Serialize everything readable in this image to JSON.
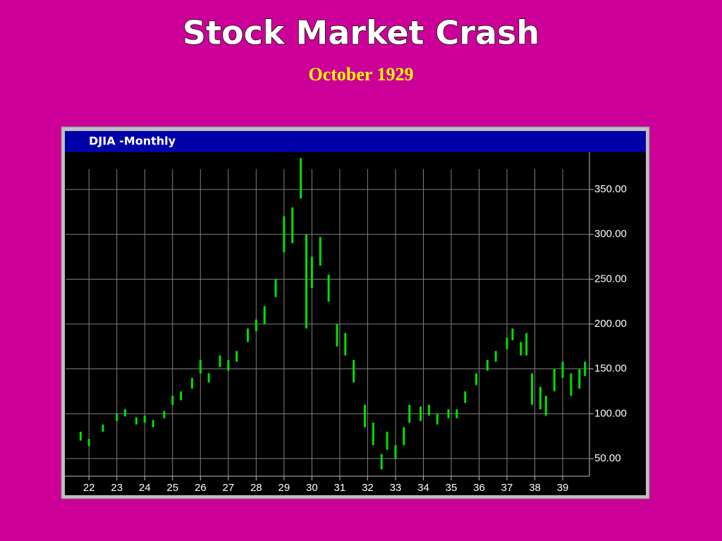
{
  "header": {
    "title": "Stock Market Crash",
    "subtitle": "October 1929"
  },
  "chart_data": {
    "type": "hilo",
    "title": "DJIA -Monthly",
    "color": "#00e000",
    "grid": true,
    "x": [
      21.7,
      22.0,
      22.5,
      23.0,
      23.3,
      23.7,
      24.0,
      24.3,
      24.7,
      25.0,
      25.3,
      25.7,
      26.0,
      26.3,
      26.7,
      27.0,
      27.3,
      27.7,
      28.0,
      28.3,
      28.7,
      29.0,
      29.3,
      29.6,
      29.8,
      30.0,
      30.3,
      30.6,
      30.9,
      31.2,
      31.5,
      31.9,
      32.2,
      32.5,
      32.7,
      33.0,
      33.3,
      33.5,
      33.9,
      34.2,
      34.5,
      34.9,
      35.2,
      35.5,
      35.9,
      36.3,
      36.6,
      37.0,
      37.2,
      37.5,
      37.7,
      37.9,
      38.2,
      38.4,
      38.7,
      39.0,
      39.3,
      39.6,
      39.8
    ],
    "high": [
      80,
      72,
      88,
      100,
      105,
      96,
      98,
      93,
      103,
      120,
      125,
      140,
      160,
      145,
      165,
      160,
      170,
      195,
      205,
      220,
      250,
      320,
      330,
      385,
      300,
      275,
      297,
      255,
      200,
      190,
      160,
      110,
      90,
      55,
      80,
      65,
      85,
      110,
      108,
      110,
      100,
      105,
      105,
      125,
      145,
      160,
      170,
      185,
      195,
      180,
      190,
      145,
      130,
      120,
      150,
      158,
      145,
      150,
      158
    ],
    "low": [
      70,
      64,
      80,
      92,
      97,
      88,
      90,
      85,
      95,
      110,
      115,
      128,
      145,
      135,
      152,
      148,
      158,
      180,
      192,
      200,
      230,
      280,
      290,
      340,
      195,
      240,
      265,
      225,
      175,
      165,
      135,
      85,
      65,
      38,
      60,
      50,
      65,
      90,
      92,
      98,
      88,
      95,
      95,
      112,
      132,
      148,
      158,
      172,
      182,
      165,
      165,
      110,
      105,
      98,
      125,
      140,
      120,
      128,
      142
    ],
    "xlim": [
      21.16,
      39.96
    ],
    "ylim": [
      30.4,
      391.6
    ],
    "xticks": [
      22,
      23,
      24,
      25,
      26,
      27,
      28,
      29,
      30,
      31,
      32,
      33,
      34,
      35,
      36,
      37,
      38,
      39
    ],
    "yticks": [
      {
        "value": 50,
        "label": "50.00"
      },
      {
        "value": 100,
        "label": "100.00"
      },
      {
        "value": 150,
        "label": "150.00"
      },
      {
        "value": 200,
        "label": "200.00"
      },
      {
        "value": 250,
        "label": "250.00"
      },
      {
        "value": 300,
        "label": "300.00"
      },
      {
        "value": 350,
        "label": "350.00"
      }
    ]
  }
}
